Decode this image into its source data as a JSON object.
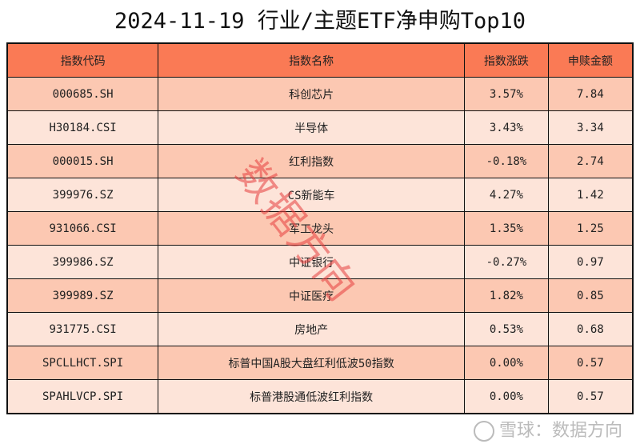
{
  "title": "2024-11-19 行业/主题ETF净申购Top10",
  "headers": [
    "指数代码",
    "指数名称",
    "指数涨跌",
    "申赎金额"
  ],
  "rows": [
    [
      "000685.SH",
      "科创芯片",
      "3.57%",
      "7.84"
    ],
    [
      "H30184.CSI",
      "半导体",
      "3.43%",
      "3.34"
    ],
    [
      "000015.SH",
      "红利指数",
      "-0.18%",
      "2.74"
    ],
    [
      "399976.SZ",
      "CS新能车",
      "4.27%",
      "1.42"
    ],
    [
      "931066.CSI",
      "军工龙头",
      "1.35%",
      "1.25"
    ],
    [
      "399986.SZ",
      "中证银行",
      "-0.27%",
      "0.97"
    ],
    [
      "399989.SZ",
      "中证医疗",
      "1.82%",
      "0.85"
    ],
    [
      "931775.CSI",
      "房地产",
      "0.53%",
      "0.68"
    ],
    [
      "SPCLLHCT.SPI",
      "标普中国A股大盘红利低波50指数",
      "0.00%",
      "0.57"
    ],
    [
      "SPAHLVCP.SPI",
      "标普港股通低波红利指数",
      "0.00%",
      "0.57"
    ]
  ],
  "watermark": "数据方向",
  "footer": "雪球：数据方向",
  "colors": {
    "header": "#fa7a55",
    "row_odd": "#fcc8b2",
    "row_even": "#fde4d9"
  }
}
